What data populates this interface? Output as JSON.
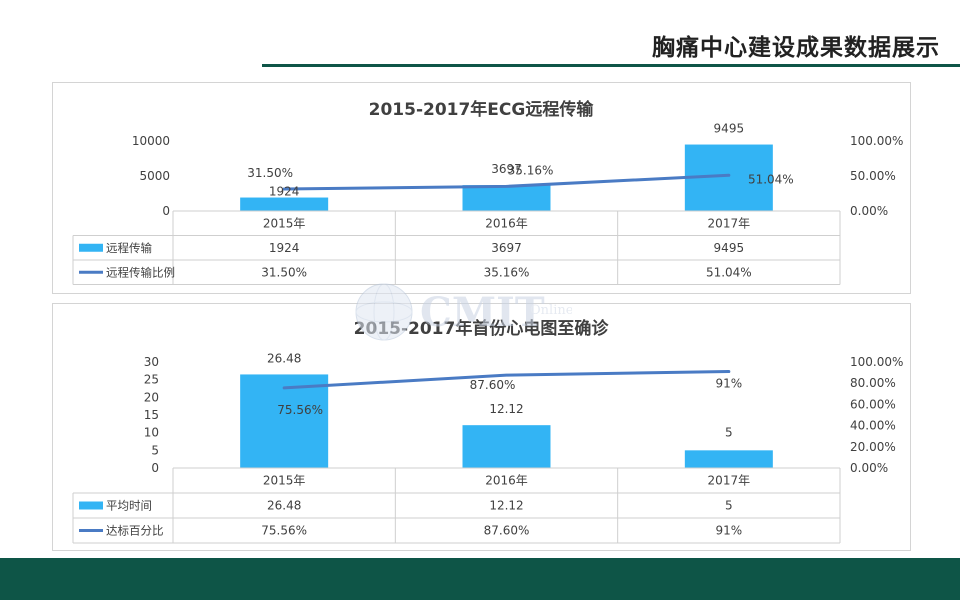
{
  "page": {
    "title": "胸痛中心建设成果数据展示"
  },
  "chart_data": [
    {
      "type": "bar",
      "title": "2015-2017年ECG远程传输",
      "categories": [
        "2015年",
        "2016年",
        "2017年"
      ],
      "series": [
        {
          "name": "远程传输",
          "type": "bar",
          "axis": "left",
          "values": [
            1924,
            3697,
            9495
          ],
          "labels": [
            "1924",
            "3697",
            "9495"
          ]
        },
        {
          "name": "远程传输比例",
          "type": "line",
          "axis": "right",
          "values": [
            0.315,
            0.3516,
            0.5104
          ],
          "labels": [
            "31.50%",
            "35.16%",
            "51.04%"
          ]
        }
      ],
      "left_axis": {
        "ticks": [
          0,
          5000,
          10000
        ],
        "tick_labels": [
          "0",
          "5000",
          "10000"
        ],
        "ylim": [
          0,
          10000
        ]
      },
      "right_axis": {
        "ticks": [
          0,
          0.5,
          1
        ],
        "tick_labels": [
          "0.00%",
          "50.00%",
          "100.00%"
        ],
        "ylim": [
          0,
          1
        ]
      },
      "colors": {
        "bar": "#33b4f4",
        "line": "#4a7bc4"
      },
      "legend": "table-below"
    },
    {
      "type": "bar",
      "title": "2015-2017年首份心电图至确诊",
      "categories": [
        "2015年",
        "2016年",
        "2017年"
      ],
      "series": [
        {
          "name": "平均时间",
          "type": "bar",
          "axis": "left",
          "values": [
            26.48,
            12.12,
            5
          ],
          "labels": [
            "26.48",
            "12.12",
            "5"
          ]
        },
        {
          "name": "达标百分比",
          "type": "line",
          "axis": "right",
          "values": [
            0.7556,
            0.876,
            0.91
          ],
          "labels": [
            "75.56%",
            "87.60%",
            "91%"
          ]
        }
      ],
      "left_axis": {
        "ticks": [
          0,
          5,
          10,
          15,
          20,
          25,
          30
        ],
        "tick_labels": [
          "0",
          "5",
          "10",
          "15",
          "20",
          "25",
          "30"
        ],
        "ylim": [
          0,
          30
        ]
      },
      "right_axis": {
        "ticks": [
          0,
          0.2,
          0.4,
          0.6,
          0.8,
          1
        ],
        "tick_labels": [
          "0.00%",
          "20.00%",
          "40.00%",
          "60.00%",
          "80.00%",
          "100.00%"
        ],
        "ylim": [
          0,
          1
        ]
      },
      "colors": {
        "bar": "#33b4f4",
        "line": "#4a7bc4"
      },
      "legend": "table-below"
    }
  ],
  "watermark": {
    "text": "CMIT",
    "subtext": "Online"
  }
}
